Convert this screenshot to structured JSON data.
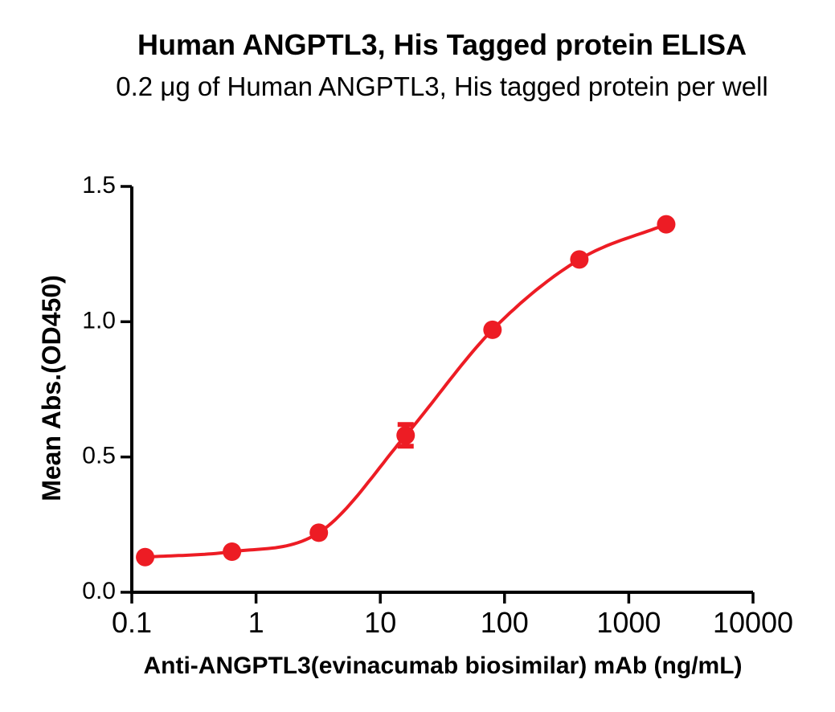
{
  "figure": {
    "title": "Human ANGPTL3, His Tagged protein ELISA",
    "subtitle": "0.2 μg of Human ANGPTL3, His tagged protein per well",
    "background": "#ffffff",
    "text_color": "#000000",
    "accent_color": "#ED1C24"
  },
  "chart_data": {
    "type": "scatter",
    "title": "Human ANGPTL3, His Tagged protein ELISA",
    "subtitle": "0.2 μg of Human ANGPTL3, His tagged protein per well",
    "xlabel": "Anti-ANGPTL3(evinacumab biosimilar) mAb (ng/mL)",
    "ylabel": "Mean Abs.(OD450)",
    "x_scale": "log",
    "xlim": [
      0.1,
      10000
    ],
    "ylim": [
      0.0,
      1.5
    ],
    "x_ticks": [
      0.1,
      1,
      10,
      100,
      1000,
      10000
    ],
    "x_tick_labels": [
      "0.1",
      "1",
      "10",
      "100",
      "1000",
      "10000"
    ],
    "y_ticks": [
      0.0,
      0.5,
      1.0,
      1.5
    ],
    "y_tick_labels": [
      "0.0",
      "0.5",
      "1.0",
      "1.5"
    ],
    "grid": false,
    "legend": "none",
    "series": [
      {
        "name": "Anti-ANGPTL3(evinacumab biosimilar) mAb",
        "color": "#ED1C24",
        "marker": "circle",
        "curve": "sigmoidal dose-response fit",
        "x": [
          0.128,
          0.64,
          3.2,
          16,
          80,
          400,
          2000
        ],
        "y": [
          0.13,
          0.15,
          0.22,
          0.58,
          0.97,
          1.23,
          1.36
        ],
        "y_err": [
          0,
          0,
          0,
          0.04,
          0,
          0,
          0
        ]
      }
    ]
  }
}
